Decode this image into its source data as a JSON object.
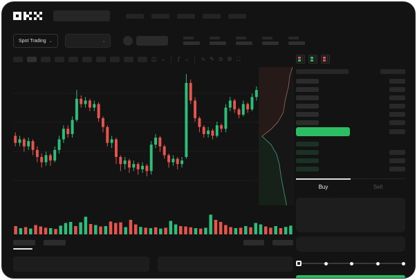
{
  "colors": {
    "up": "#2ebd7a",
    "down": "#e5544d",
    "accent_green": "#2dbe64",
    "depth_ask_line": "#8a5a55",
    "depth_ask_fill": "#261a19",
    "depth_bid_line": "#3e8a71",
    "depth_bid_fill": "#152119",
    "grid": "#1e1e1e"
  },
  "topnav": {
    "logo": {
      "name": "okx-logo",
      "letters": [
        "O",
        "K",
        "X"
      ]
    },
    "search": {
      "placeholder": ""
    },
    "items": [
      "",
      "",
      "",
      "",
      ""
    ]
  },
  "instrument_bar": {
    "market_selector": {
      "label": "Spot Trading",
      "chevron": "⌄"
    },
    "pair_selector": {
      "value": "",
      "chevron": "⌄"
    },
    "stats": [
      "",
      "",
      "",
      "",
      ""
    ]
  },
  "chart_toolbar": {
    "timeframes": [
      "",
      "",
      "",
      "",
      "",
      "",
      "",
      "",
      "",
      ""
    ],
    "active_timeframe_index": 1,
    "icons": [
      "chart-type-icon",
      "chevron-down-icon",
      "divider",
      "indicator-icon",
      "chevron-down-icon",
      "divider",
      "line-tool-icon",
      "draw-icon",
      "snapshot-icon",
      "settings-icon",
      "fullscreen-icon"
    ],
    "icon_glyphs": {
      "chart-type-icon": "◫",
      "chevron-down-icon": "⌄",
      "divider": "",
      "indicator-icon": "ƒ",
      "line-tool-icon": "∿",
      "draw-icon": "✎",
      "snapshot-icon": "⊙",
      "settings-icon": "⚙",
      "fullscreen-icon": "⛶"
    }
  },
  "chart_data": {
    "type": "candlestick",
    "title": "",
    "xlabel": "",
    "ylabel": "",
    "ylim": [
      30,
      95
    ],
    "grid": true,
    "candles_ochl": [
      [
        56,
        52,
        58,
        50
      ],
      [
        52,
        54,
        56,
        50
      ],
      [
        54,
        50,
        55,
        47
      ],
      [
        50,
        53,
        55,
        48
      ],
      [
        53,
        48,
        54,
        45
      ],
      [
        48,
        44,
        50,
        41
      ],
      [
        44,
        41,
        46,
        38
      ],
      [
        41,
        45,
        47,
        39
      ],
      [
        45,
        42,
        46,
        39
      ],
      [
        42,
        48,
        50,
        41
      ],
      [
        48,
        54,
        56,
        46
      ],
      [
        54,
        60,
        62,
        52
      ],
      [
        60,
        57,
        62,
        55
      ],
      [
        57,
        65,
        67,
        55
      ],
      [
        65,
        77,
        82,
        64
      ],
      [
        77,
        74,
        79,
        72
      ],
      [
        74,
        76,
        78,
        72
      ],
      [
        76,
        72,
        77,
        70
      ],
      [
        72,
        74,
        76,
        70
      ],
      [
        74,
        66,
        75,
        64
      ],
      [
        66,
        61,
        67,
        58
      ],
      [
        61,
        52,
        62,
        50
      ],
      [
        52,
        54,
        56,
        49
      ],
      [
        54,
        44,
        55,
        40
      ],
      [
        44,
        40,
        45,
        36
      ],
      [
        40,
        42,
        44,
        37
      ],
      [
        42,
        38,
        43,
        35
      ],
      [
        38,
        40,
        42,
        36
      ],
      [
        40,
        37,
        41,
        34
      ],
      [
        37,
        39,
        41,
        35
      ],
      [
        39,
        36,
        40,
        33
      ],
      [
        36,
        51,
        53,
        34
      ],
      [
        51,
        55,
        57,
        49
      ],
      [
        55,
        50,
        56,
        47
      ],
      [
        50,
        45,
        51,
        43
      ],
      [
        45,
        41,
        46,
        38
      ],
      [
        41,
        43,
        45,
        39
      ],
      [
        43,
        40,
        44,
        37
      ],
      [
        40,
        42,
        44,
        38
      ],
      [
        44,
        86,
        91,
        43
      ],
      [
        86,
        76,
        88,
        74
      ],
      [
        76,
        66,
        78,
        64
      ],
      [
        66,
        61,
        67,
        58
      ],
      [
        61,
        57,
        62,
        55
      ],
      [
        57,
        59,
        61,
        55
      ],
      [
        59,
        56,
        60,
        54
      ],
      [
        56,
        62,
        64,
        55
      ],
      [
        62,
        60,
        63,
        58
      ],
      [
        60,
        72,
        74,
        58
      ],
      [
        72,
        76,
        78,
        70
      ],
      [
        76,
        71,
        77,
        69
      ],
      [
        71,
        68,
        72,
        66
      ],
      [
        68,
        74,
        76,
        67
      ],
      [
        74,
        71,
        75,
        69
      ],
      [
        71,
        78,
        80,
        70
      ],
      [
        78,
        82,
        84,
        76
      ]
    ],
    "volumes": [
      40,
      30,
      35,
      28,
      45,
      38,
      32,
      30,
      26,
      42,
      55,
      60,
      40,
      58,
      85,
      50,
      45,
      38,
      40,
      62,
      55,
      58,
      35,
      70,
      48,
      36,
      32,
      30,
      34,
      28,
      32,
      65,
      48,
      40,
      38,
      34,
      30,
      28,
      32,
      95,
      70,
      60,
      45,
      35,
      30,
      32,
      40,
      34,
      55,
      48,
      38,
      32,
      40,
      30,
      36,
      42
    ]
  },
  "depth": {
    "asks": [
      [
        1,
        0
      ],
      [
        0.92,
        0.06
      ],
      [
        0.88,
        0.14
      ],
      [
        0.78,
        0.24
      ],
      [
        0.72,
        0.33
      ],
      [
        0.55,
        0.4
      ],
      [
        0.35,
        0.45
      ],
      [
        0.08,
        0.5
      ]
    ],
    "bids": [
      [
        0.08,
        0.5
      ],
      [
        0.35,
        0.56
      ],
      [
        0.52,
        0.63
      ],
      [
        0.6,
        0.7
      ],
      [
        0.66,
        0.8
      ],
      [
        0.74,
        0.9
      ],
      [
        0.8,
        0.97
      ],
      [
        0.82,
        1.0
      ]
    ]
  },
  "orderbook": {
    "modes": [
      {
        "name": "book-combined-icon",
        "top": "#e5544d",
        "bottom": "#2dbe64"
      },
      {
        "name": "book-bids-icon",
        "top": "#2dbe64",
        "bottom": "#2dbe64"
      },
      {
        "name": "book-asks-icon",
        "top": "#e5544d",
        "bottom": "#e5544d"
      }
    ],
    "headers": [
      "",
      ""
    ],
    "ask_rows": [
      {
        "has_amount": true
      },
      {
        "has_amount": true
      },
      {
        "has_amount": true
      },
      {
        "has_amount": true
      },
      {
        "has_amount": true
      },
      {
        "has_amount": true
      }
    ],
    "last_price": {
      "value": "",
      "has_amount": true
    },
    "bid_rows": [
      {
        "has_amount": false
      },
      {
        "has_amount": true
      },
      {
        "has_amount": true
      },
      {
        "has_amount": true
      }
    ]
  },
  "trade_panel": {
    "tabs": [
      {
        "label": "Buy",
        "active": true
      },
      {
        "label": "Sell",
        "active": false
      }
    ],
    "fields": [
      "",
      ""
    ],
    "slider": {
      "stops": 5,
      "active_index": 0
    },
    "submit": {
      "label": "",
      "color": "#2dbe64"
    }
  },
  "bottom_bar": {
    "tabs": [
      {
        "active": true
      },
      {
        "active": false
      }
    ],
    "right_items": [
      "",
      ""
    ],
    "panels": [
      "",
      ""
    ]
  }
}
